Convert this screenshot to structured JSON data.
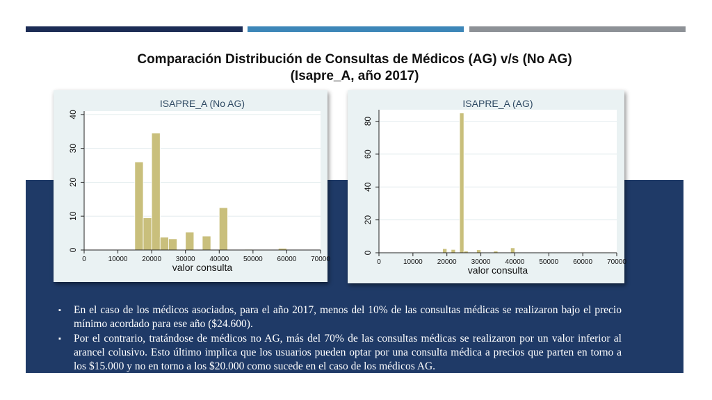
{
  "slide": {
    "title_line1": "Comparación Distribución de Consultas de Médicos (AG) v/s (No AG)",
    "title_line2": "(Isapre_A, año 2017)",
    "colors": {
      "navy": "#1f3a67",
      "band1": "#1c2c55",
      "band2": "#3d86b8",
      "band3": "#8d9196",
      "bar": "#c9bf7c",
      "plot_bg": "#ffffff",
      "panel_bg": "#eaf2f3"
    }
  },
  "bullets": [
    {
      "icon": "square-bullet-icon",
      "text": "En el caso de los médicos asociados, para el año 2017, menos del 10% de las consultas médicas se realizaron bajo el precio mínimo acordado para ese año ($24.600)."
    },
    {
      "icon": "square-bullet-icon",
      "text": "Por el contrario, tratándose de médicos no AG, más del 70% de las consultas médicas se realizaron por un valor inferior al arancel colusivo. Esto último implica que los usuarios pueden optar por una consulta médica a precios que parten en torno a los $15.000 y no en torno  a los $20.000 como sucede en el caso de los médicos AG."
    }
  ],
  "chart_data": [
    {
      "type": "bar",
      "title": "ISAPRE_A (No AG)",
      "xlabel": "valor consulta",
      "ylabel": "",
      "xlim": [
        0,
        70000
      ],
      "ylim": [
        0,
        41
      ],
      "xticks": [
        0,
        10000,
        20000,
        30000,
        40000,
        50000,
        60000,
        70000
      ],
      "yticks": [
        0,
        10,
        20,
        30,
        40
      ],
      "bin_width": 2500,
      "bins_start": [
        15000,
        17500,
        20000,
        22500,
        25000,
        30000,
        35000,
        40000,
        47500,
        57500
      ],
      "values": [
        26,
        9.5,
        34.5,
        3.8,
        3.3,
        5.3,
        4.1,
        12.5,
        0.2,
        0.5
      ],
      "grid": true
    },
    {
      "type": "bar",
      "title": "ISAPRE_A (AG)",
      "xlabel": "valor consulta",
      "ylabel": "",
      "xlim": [
        0,
        70000
      ],
      "ylim": [
        0,
        87
      ],
      "xticks": [
        0,
        10000,
        20000,
        30000,
        40000,
        50000,
        60000,
        70000
      ],
      "yticks": [
        0,
        20,
        40,
        60,
        80
      ],
      "bin_width": 1250,
      "bins_start": [
        18750,
        21250,
        23750,
        25000,
        28750,
        33750,
        38750
      ],
      "values": [
        2.5,
        2,
        85,
        1,
        1.8,
        1,
        3
      ],
      "grid": true
    }
  ]
}
